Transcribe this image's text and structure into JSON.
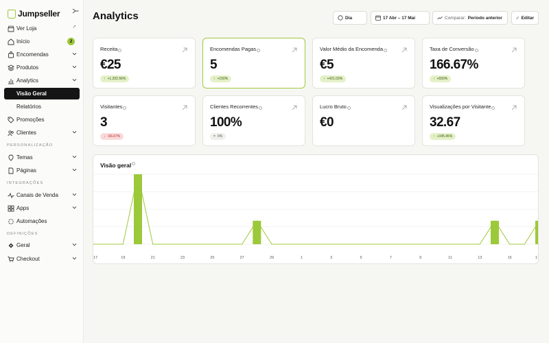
{
  "brand": {
    "name": "Jumpseller"
  },
  "sidebar": {
    "items": [
      {
        "key": "ver-loja",
        "label": "Ver Loja",
        "icon": "store-icon",
        "ext": "↗"
      },
      {
        "key": "inicio",
        "label": "Início",
        "icon": "home-icon",
        "badge": "2"
      },
      {
        "key": "encomendas",
        "label": "Encomendas",
        "icon": "bag-icon",
        "chevron": true
      },
      {
        "key": "produtos",
        "label": "Produtos",
        "icon": "layers-icon",
        "chevron": true
      },
      {
        "key": "analytics",
        "label": "Analytics",
        "icon": "bar-chart-icon",
        "chevron": true
      },
      {
        "key": "visao-geral",
        "label": "Visão Geral",
        "active": true,
        "sub": true
      },
      {
        "key": "relatorios",
        "label": "Relatórios",
        "sub": true
      },
      {
        "key": "promocoes",
        "label": "Promoções",
        "icon": "tag-icon"
      },
      {
        "key": "clientes",
        "label": "Clientes",
        "icon": "users-icon",
        "chevron": true
      }
    ],
    "sections": {
      "personalizacao": "PERSONALIZAÇÃO",
      "integracoes": "INTEGRAÇÕES",
      "definicoes": "DEFINIÇÕES"
    },
    "personalizacao_items": [
      {
        "key": "temas",
        "label": "Temas",
        "icon": "brush-icon",
        "chevron": true
      },
      {
        "key": "paginas",
        "label": "Páginas",
        "icon": "page-icon",
        "chevron": true
      }
    ],
    "integracoes_items": [
      {
        "key": "canais",
        "label": "Canais de Venda",
        "icon": "pulse-icon",
        "chevron": true
      },
      {
        "key": "apps",
        "label": "Apps",
        "icon": "grid-icon",
        "chevron": true
      },
      {
        "key": "automacoes",
        "label": "Automações",
        "icon": "loader-icon"
      }
    ],
    "definicoes_items": [
      {
        "key": "geral",
        "label": "Geral",
        "icon": "gear-icon",
        "chevron": true
      },
      {
        "key": "checkout",
        "label": "Checkout",
        "icon": "cart-icon",
        "chevron": true
      }
    ]
  },
  "header": {
    "title": "Analytics",
    "granularity": "Dia",
    "date_range": "17 Abr – 17 Mai",
    "compare_label": "Comparar:",
    "compare_value": "Período anterior",
    "edit_label": "Editar"
  },
  "metrics": [
    {
      "label": "Receita",
      "value": "€25",
      "change": "+1,202.56%",
      "trend": "up"
    },
    {
      "label": "Encomendas Pagas",
      "value": "5",
      "change": "+150%",
      "trend": "up",
      "selected": true
    },
    {
      "label": "Valor Médio da Encomenda",
      "value": "€5",
      "change": "+421.03%",
      "trend": "up"
    },
    {
      "label": "Taxa de Conversão",
      "value": "166.67%",
      "change": "+650%",
      "trend": "up"
    },
    {
      "label": "Visitantes",
      "value": "3",
      "change": "-66.67%",
      "trend": "down"
    },
    {
      "label": "Clientes Recorrentes",
      "value": "100%",
      "change": "0%",
      "trend": "flat"
    },
    {
      "label": "Lucro Bruto",
      "value": "€0",
      "change": "",
      "trend": "none"
    },
    {
      "label": "Visualizações por Visitante",
      "value": "32.67",
      "change": "+345.45%",
      "trend": "up"
    }
  ],
  "colors": {
    "accent": "#9cc93a",
    "negative": "#e04848",
    "sidebar_active": "#151515"
  },
  "chart_data": {
    "type": "bar",
    "title": "Visão geral",
    "x_ticks": [
      "17",
      "19",
      "21",
      "23",
      "25",
      "27",
      "29",
      "1",
      "3",
      "5",
      "7",
      "9",
      "11",
      "13",
      "15",
      "17"
    ],
    "categories": [
      "17/04",
      "18/04",
      "19/04",
      "20/04",
      "21/04",
      "22/04",
      "23/04",
      "24/04",
      "25/04",
      "26/04",
      "27/04",
      "28/04",
      "29/04",
      "30/04",
      "01/05",
      "02/05",
      "03/05",
      "04/05",
      "05/05",
      "06/05",
      "07/05",
      "08/05",
      "09/05",
      "10/05",
      "11/05",
      "12/05",
      "13/05",
      "14/05",
      "15/05",
      "16/05",
      "17/05"
    ],
    "series": [
      {
        "values": [
          0,
          0,
          0,
          2,
          0,
          0,
          0,
          0,
          0,
          0,
          0,
          0.67,
          0,
          0,
          0,
          0,
          0,
          0,
          0,
          0,
          0,
          0,
          0,
          0,
          0,
          0,
          0,
          0.67,
          0,
          0,
          0.67
        ]
      }
    ],
    "ylim": [
      0,
      2
    ],
    "grid": true
  }
}
